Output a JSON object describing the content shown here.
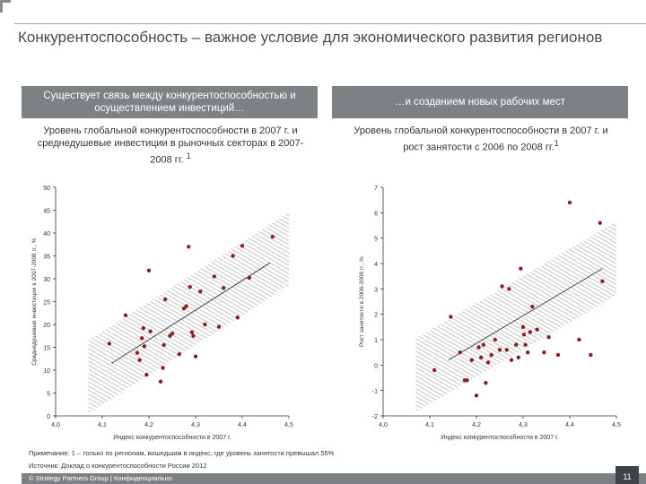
{
  "page": {
    "title": "Конкурентоспособность – важное условие для экономического развития регионов"
  },
  "panels": {
    "left_header": "Существует связь между конкурентоспособностью и осуществлением инвестиций…",
    "right_header": "…и созданием новых рабочих мест"
  },
  "colors": {
    "header_bg": "#7c8284",
    "point": "#8b2020",
    "band_hatch": "#b5b5b5",
    "axis": "#333333",
    "footer_bg": "#7c8284"
  },
  "chart_data": [
    {
      "type": "scatter",
      "title": "Уровень глобальной конкурентоспособности в 2007 г. и среднедушевые инвестиции в рыночных секторах в 2007-2008 гг.",
      "title_sup": "1",
      "xlabel": "Индекс конкурентоспособности в 2007 г.",
      "ylabel": "Среднедушевые инвестиции в 2007-2008 гг., %",
      "xlim": [
        4.0,
        4.5
      ],
      "ylim": [
        0,
        50
      ],
      "x_ticks": [
        "4,0",
        "4,1",
        "4,2",
        "4,3",
        "4,4",
        "4,5"
      ],
      "y_ticks": [
        "0",
        "5",
        "10",
        "15",
        "20",
        "25",
        "30",
        "35",
        "40",
        "45",
        "50"
      ],
      "trendline": {
        "x": [
          4.12,
          4.46
        ],
        "y": [
          11.5,
          33.5
        ]
      },
      "band": {
        "x": [
          4.07,
          4.5
        ],
        "center": [
          8.5,
          36.5
        ],
        "half_width": 8
      },
      "points": [
        {
          "x": 4.115,
          "y": 15.8
        },
        {
          "x": 4.15,
          "y": 22.0
        },
        {
          "x": 4.175,
          "y": 13.8
        },
        {
          "x": 4.18,
          "y": 12.2
        },
        {
          "x": 4.185,
          "y": 17.0
        },
        {
          "x": 4.188,
          "y": 19.2
        },
        {
          "x": 4.19,
          "y": 15.2
        },
        {
          "x": 4.195,
          "y": 9.0
        },
        {
          "x": 4.2,
          "y": 31.8
        },
        {
          "x": 4.203,
          "y": 18.5
        },
        {
          "x": 4.225,
          "y": 7.5
        },
        {
          "x": 4.23,
          "y": 10.5
        },
        {
          "x": 4.232,
          "y": 15.5
        },
        {
          "x": 4.235,
          "y": 25.5
        },
        {
          "x": 4.245,
          "y": 17.5
        },
        {
          "x": 4.25,
          "y": 18.0
        },
        {
          "x": 4.265,
          "y": 13.5
        },
        {
          "x": 4.275,
          "y": 23.5
        },
        {
          "x": 4.28,
          "y": 24.0
        },
        {
          "x": 4.285,
          "y": 37.0
        },
        {
          "x": 4.288,
          "y": 28.2
        },
        {
          "x": 4.292,
          "y": 18.3
        },
        {
          "x": 4.295,
          "y": 17.5
        },
        {
          "x": 4.3,
          "y": 13.0
        },
        {
          "x": 4.31,
          "y": 27.2
        },
        {
          "x": 4.32,
          "y": 20.0
        },
        {
          "x": 4.34,
          "y": 30.5
        },
        {
          "x": 4.35,
          "y": 19.5
        },
        {
          "x": 4.36,
          "y": 28.0
        },
        {
          "x": 4.38,
          "y": 35.0
        },
        {
          "x": 4.39,
          "y": 21.5
        },
        {
          "x": 4.4,
          "y": 37.2
        },
        {
          "x": 4.415,
          "y": 30.2
        },
        {
          "x": 4.465,
          "y": 39.2
        }
      ]
    },
    {
      "type": "scatter",
      "title": "Уровень глобальной конкурентоспособности в 2007 г. и рост занятости с 2006 по 2008 гг.",
      "title_sup": "1",
      "xlabel": "Индекс конкурентоспособности в 2007 г.",
      "ylabel": "Рост занятости в 2006-2008 гг., %",
      "xlim": [
        4.0,
        4.5
      ],
      "ylim": [
        -2,
        7
      ],
      "x_ticks": [
        "4,0",
        "4,1",
        "4,2",
        "4,3",
        "4,4",
        "4,5"
      ],
      "y_ticks": [
        "-2",
        "-1",
        "0",
        "1",
        "2",
        "3",
        "4",
        "5",
        "6",
        "7"
      ],
      "trendline": {
        "x": [
          4.14,
          4.47
        ],
        "y": [
          0.2,
          3.8
        ]
      },
      "band": {
        "x": [
          4.07,
          4.5
        ],
        "center": [
          -0.4,
          4.2
        ],
        "half_width": 1.45
      },
      "points": [
        {
          "x": 4.11,
          "y": -0.2
        },
        {
          "x": 4.145,
          "y": 1.9
        },
        {
          "x": 4.165,
          "y": 0.5
        },
        {
          "x": 4.175,
          "y": -0.6
        },
        {
          "x": 4.18,
          "y": -0.6
        },
        {
          "x": 4.19,
          "y": 0.2
        },
        {
          "x": 4.2,
          "y": -1.2
        },
        {
          "x": 4.205,
          "y": 0.7
        },
        {
          "x": 4.21,
          "y": 0.3
        },
        {
          "x": 4.215,
          "y": 0.8
        },
        {
          "x": 4.22,
          "y": -0.7
        },
        {
          "x": 4.225,
          "y": 0.1
        },
        {
          "x": 4.232,
          "y": 0.4
        },
        {
          "x": 4.24,
          "y": 1.0
        },
        {
          "x": 4.25,
          "y": 0.6
        },
        {
          "x": 4.255,
          "y": 3.1
        },
        {
          "x": 4.265,
          "y": 0.6
        },
        {
          "x": 4.27,
          "y": 3.0
        },
        {
          "x": 4.275,
          "y": 0.2
        },
        {
          "x": 4.285,
          "y": 0.8
        },
        {
          "x": 4.29,
          "y": 0.3
        },
        {
          "x": 4.295,
          "y": 3.8
        },
        {
          "x": 4.3,
          "y": 1.5
        },
        {
          "x": 4.302,
          "y": 1.2
        },
        {
          "x": 4.305,
          "y": 0.8
        },
        {
          "x": 4.31,
          "y": 0.5
        },
        {
          "x": 4.315,
          "y": 1.3
        },
        {
          "x": 4.32,
          "y": 2.3
        },
        {
          "x": 4.33,
          "y": 1.4
        },
        {
          "x": 4.345,
          "y": 0.5
        },
        {
          "x": 4.355,
          "y": 1.1
        },
        {
          "x": 4.375,
          "y": 0.4
        },
        {
          "x": 4.4,
          "y": 6.4
        },
        {
          "x": 4.42,
          "y": 1.0
        },
        {
          "x": 4.445,
          "y": 0.4
        },
        {
          "x": 4.465,
          "y": 5.6
        },
        {
          "x": 4.47,
          "y": 3.3
        }
      ]
    }
  ],
  "notes": {
    "note": "Примечание: 1 – только по регионам, вошедшим в индекс, где уровень занятости превышал 55%",
    "source": "Источник: Доклад о конкурентоспособности России 2012"
  },
  "footer": {
    "copyright": "© Strategy Partners Group | Конфиденциально",
    "page_number": "11"
  }
}
